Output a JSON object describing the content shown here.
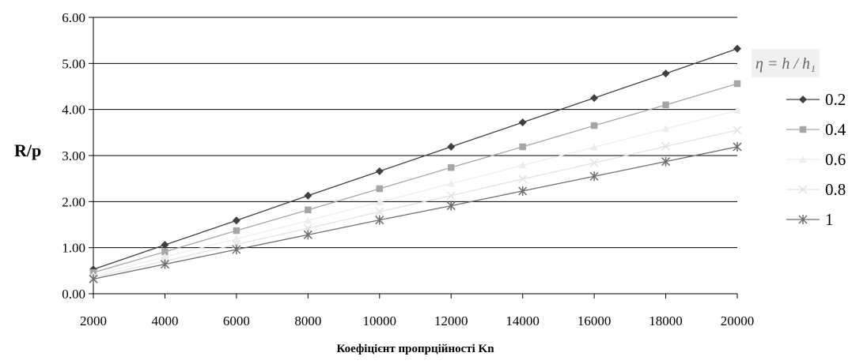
{
  "chart_data": {
    "type": "line",
    "xlabel": "Коефіцієнт пропрційності Kn",
    "ylabel": "R/p",
    "legend_title": "η = h / h₁",
    "legend_position": "right",
    "grid": "horizontal",
    "xlim": [
      2000,
      20000
    ],
    "ylim": [
      0,
      6
    ],
    "x_ticks": [
      "2000",
      "4000",
      "6000",
      "8000",
      "10000",
      "12000",
      "14000",
      "16000",
      "18000",
      "20000"
    ],
    "y_ticks": [
      "0.00",
      "1.00",
      "2.00",
      "3.00",
      "4.00",
      "5.00",
      "6.00"
    ],
    "x": [
      2000,
      4000,
      6000,
      8000,
      10000,
      12000,
      14000,
      16000,
      18000,
      20000
    ],
    "series": [
      {
        "name": "0.2",
        "marker": "diamond",
        "color": "#404040",
        "values": [
          0.53,
          1.06,
          1.59,
          2.13,
          2.66,
          3.19,
          3.72,
          4.25,
          4.78,
          5.32
        ]
      },
      {
        "name": "0.4",
        "marker": "square",
        "color": "#a6a6a6",
        "values": [
          0.46,
          0.91,
          1.37,
          1.82,
          2.28,
          2.74,
          3.19,
          3.65,
          4.1,
          4.56
        ]
      },
      {
        "name": "0.6",
        "marker": "triangle",
        "color": "#ededed",
        "values": [
          0.4,
          0.8,
          1.19,
          1.59,
          1.99,
          2.39,
          2.79,
          3.18,
          3.58,
          3.98
        ]
      },
      {
        "name": "0.8",
        "marker": "x",
        "color": "#e2e2e2",
        "values": [
          0.36,
          0.71,
          1.07,
          1.42,
          1.78,
          2.13,
          2.49,
          2.84,
          3.2,
          3.55
        ]
      },
      {
        "name": "1",
        "marker": "star",
        "color": "#6e6e6e",
        "values": [
          0.32,
          0.64,
          0.96,
          1.28,
          1.6,
          1.91,
          2.23,
          2.55,
          2.87,
          3.19
        ]
      }
    ]
  }
}
